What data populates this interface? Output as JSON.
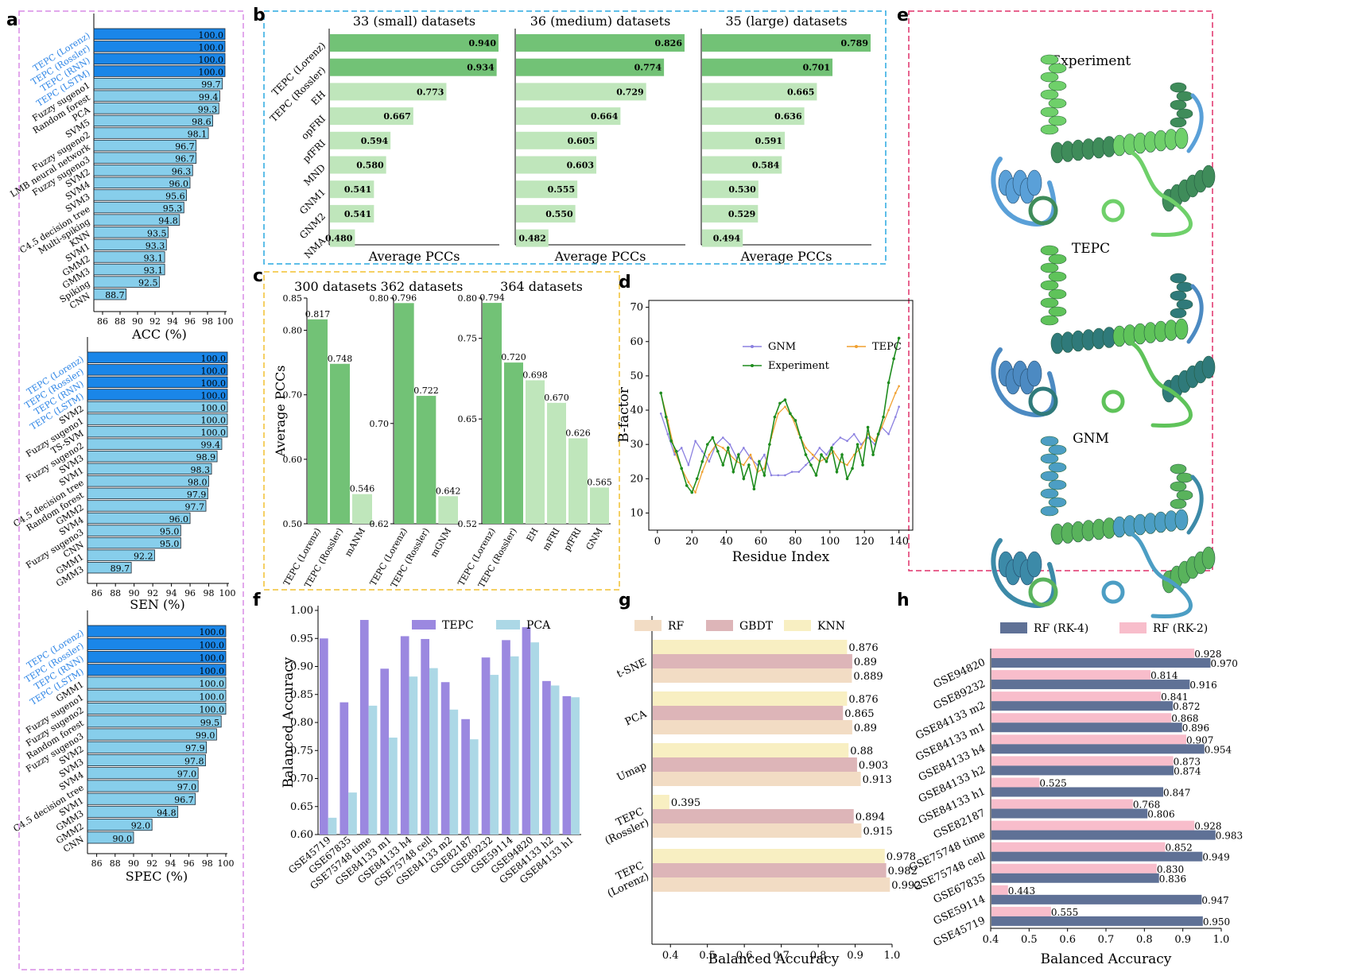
{
  "panel_labels": {
    "a": "a",
    "b": "b",
    "c": "c",
    "d": "d",
    "e": "e",
    "f": "f",
    "g": "g",
    "h": "h"
  },
  "colors": {
    "tepc_bar": "#1a86e8",
    "other_bar": "#87ceeb",
    "tepc_label": "#2f86e6",
    "green_dark": "#72c276",
    "green_light": "#bfe6bb",
    "purple": "#9b88e0",
    "lightblue": "#acd8e6",
    "rf": "#f2dcc4",
    "gbdt": "#ddb5b8",
    "knn": "#f8efc2",
    "rk4": "#5f7196",
    "rk2": "#f8bdcb",
    "gnm_line": "#8b80e0",
    "tepc_line": "#f0a030",
    "exp_line": "#1e8c1e",
    "border_a": "#d98be6",
    "border_b": "#29a8e0",
    "border_c": "#f2c030",
    "border_e": "#e0306a"
  },
  "e_titles": [
    "Experiment",
    "TEPC",
    "GNM"
  ],
  "chart_data": [
    {
      "id": "a1",
      "type": "bar",
      "categories": [
        "TEPC (Lorenz)",
        "TEPC (Rossler)",
        "TEPC (RNN)",
        "TEPC (LSTM)",
        "Fuzzy sugeno1",
        "Random forest",
        "PCA",
        "SVM5",
        "Fuzzy sugeno2",
        "LMB neural network",
        "Fuzzy sugeno3",
        "SVM2",
        "SVM4",
        "SVM3",
        "C4.5 decision tree",
        "Multi-spiking",
        "KNN",
        "SVM1",
        "GMM2",
        "GMM3",
        "Spiking",
        "CNN"
      ],
      "values": [
        100.0,
        100.0,
        100.0,
        100.0,
        99.7,
        99.4,
        99.3,
        98.6,
        98.1,
        96.7,
        96.7,
        96.3,
        96.0,
        95.6,
        95.3,
        94.8,
        93.5,
        93.3,
        93.1,
        93.1,
        92.5,
        88.7
      ],
      "value_labels": [
        "100.0",
        "100.0",
        "100.0",
        "100.0",
        "99.7",
        "99.4",
        "99.3",
        "98.6",
        "98.1",
        "96.7",
        "96.7",
        "96.3",
        "96.0",
        "95.6",
        "95.3",
        "94.8",
        "93.5",
        "93.3",
        "93.1",
        "93.1",
        "92.5",
        "88.7"
      ],
      "xlabel": "ACC (%)",
      "xlim": [
        85,
        100
      ],
      "xticks": [
        "86",
        "88",
        "90",
        "92",
        "94",
        "96",
        "98",
        "100"
      ]
    },
    {
      "id": "a2",
      "type": "bar",
      "categories": [
        "TEPC (Lorenz)",
        "TEPC (Rossler)",
        "TEPC (RNN)",
        "TEPC (LSTM)",
        "SVM2",
        "Fuzzy sugeno1",
        "TS-SVM",
        "Fuzzy sugeno2",
        "SVM3",
        "SVM1",
        "C4.5 decision tree",
        "Random forest",
        "GMM2",
        "SVM4",
        "Fuzzy sugeno3",
        "CNN",
        "GMM1",
        "GMM3"
      ],
      "values": [
        100.0,
        100.0,
        100.0,
        100.0,
        100.0,
        100.0,
        100.0,
        99.4,
        98.9,
        98.3,
        98.0,
        97.9,
        97.7,
        96.0,
        95.0,
        95.0,
        92.2,
        89.7
      ],
      "value_labels": [
        "100.0",
        "100.0",
        "100.0",
        "100.0",
        "100.0",
        "100.0",
        "100.0",
        "99.4",
        "98.9",
        "98.3",
        "98.0",
        "97.9",
        "97.7",
        "96.0",
        "95.0",
        "95.0",
        "92.2",
        "89.7"
      ],
      "xlabel": "SEN (%)",
      "xlim": [
        85,
        100
      ],
      "xticks": [
        "86",
        "88",
        "90",
        "92",
        "94",
        "96",
        "98",
        "100"
      ]
    },
    {
      "id": "a3",
      "type": "bar",
      "categories": [
        "TEPC (Lorenz)",
        "TEPC (Rossler)",
        "TEPC (RNN)",
        "TEPC (LSTM)",
        "GMM1",
        "Fuzzy sugeno1",
        "Fuzzy sugeno2",
        "Random forest",
        "Fuzzy sugeno3",
        "SVM2",
        "SVM3",
        "SVM4",
        "C4.5 decision tree",
        "SVM1",
        "GMM3",
        "GMM2",
        "CNN"
      ],
      "values": [
        100.0,
        100.0,
        100.0,
        100.0,
        100.0,
        100.0,
        100.0,
        99.5,
        99.0,
        97.9,
        97.8,
        97.0,
        97.0,
        96.7,
        94.8,
        92.0,
        90.0
      ],
      "value_labels": [
        "100.0",
        "100.0",
        "100.0",
        "100.0",
        "100.0",
        "100.0",
        "100.0",
        "99.5",
        "99.0",
        "97.9",
        "97.8",
        "97.0",
        "97.0",
        "96.7",
        "94.8",
        "92.0",
        "90.0"
      ],
      "xlabel": "SPEC (%)",
      "xlim": [
        85,
        100
      ],
      "xticks": [
        "86",
        "88",
        "90",
        "92",
        "94",
        "96",
        "98",
        "100"
      ]
    },
    {
      "id": "b",
      "type": "bar",
      "categories": [
        "TEPC (Lorenz)",
        "TEPC (Rossler)",
        "EH",
        "opFRI",
        "pfFRI",
        "MND",
        "GNM1",
        "GNM2",
        "NMA"
      ],
      "panels": [
        {
          "title": "33 (small) datasets",
          "values": [
            0.94,
            0.934,
            0.773,
            0.667,
            0.594,
            0.58,
            0.541,
            0.541,
            0.48
          ],
          "value_labels": [
            "0.940",
            "0.934",
            "0.773",
            "0.667",
            "0.594",
            "0.580",
            "0.541",
            "0.541",
            "0.480"
          ]
        },
        {
          "title": "36 (medium) datasets",
          "values": [
            0.826,
            0.774,
            0.729,
            0.664,
            0.605,
            0.603,
            0.555,
            0.55,
            0.482
          ],
          "value_labels": [
            "0.826",
            "0.774",
            "0.729",
            "0.664",
            "0.605",
            "0.603",
            "0.555",
            "0.550",
            "0.482"
          ]
        },
        {
          "title": "35 (large) datasets",
          "values": [
            0.789,
            0.701,
            0.665,
            0.636,
            0.591,
            0.584,
            0.53,
            0.529,
            0.494
          ],
          "value_labels": [
            "0.789",
            "0.701",
            "0.665",
            "0.636",
            "0.591",
            "0.584",
            "0.530",
            "0.529",
            "0.494"
          ]
        }
      ],
      "xlabel": "Average PCCs"
    },
    {
      "id": "c",
      "type": "bar",
      "ylabel": "Average PCCs",
      "panels": [
        {
          "title": "300 datasets",
          "categories": [
            "TEPC (Lorenz)",
            "TEPC (Rossler)",
            "mANM"
          ],
          "values": [
            0.817,
            0.748,
            0.546
          ],
          "value_labels": [
            "0.817",
            "0.748",
            "0.546"
          ],
          "ylim": [
            0.5,
            0.85
          ],
          "yticks": [
            "0.50",
            "0.60",
            "0.70",
            "0.80",
            "0.85"
          ],
          "ytick_values": [
            0.5,
            0.6,
            0.7,
            0.8,
            0.85
          ]
        },
        {
          "title": "362 datasets",
          "categories": [
            "TEPC (Lorenz)",
            "TEPC (Rossler)",
            "mGNM"
          ],
          "values": [
            0.796,
            0.722,
            0.642
          ],
          "value_labels": [
            "0.796",
            "0.722",
            "0.642"
          ],
          "ylim": [
            0.62,
            0.8
          ],
          "yticks": [
            "0.62",
            "0.70",
            "0.80"
          ],
          "ytick_values": [
            0.62,
            0.7,
            0.8
          ]
        },
        {
          "title": "364 datasets",
          "categories": [
            "TEPC (Lorenz)",
            "TEPC (Rossler)",
            "EH",
            "mFRI",
            "pfFRI",
            "GNM"
          ],
          "values": [
            0.794,
            0.72,
            0.698,
            0.67,
            0.626,
            0.565
          ],
          "value_labels": [
            "0.794",
            "0.720",
            "0.698",
            "0.670",
            "0.626",
            "0.565"
          ],
          "ylim": [
            0.52,
            0.8
          ],
          "yticks": [
            "0.52",
            "0.65",
            "0.75",
            "0.80"
          ],
          "ytick_values": [
            0.52,
            0.65,
            0.75,
            0.8
          ]
        }
      ]
    },
    {
      "id": "d",
      "type": "line",
      "xlabel": "Residue Index",
      "ylabel": "B-factor",
      "xlim": [
        -5,
        148
      ],
      "ylim": [
        5,
        72
      ],
      "xticks": [
        0,
        20,
        40,
        60,
        80,
        100,
        120,
        140
      ],
      "yticks": [
        10,
        20,
        30,
        40,
        50,
        60,
        70
      ],
      "series": [
        {
          "name": "GNM",
          "x": [
            2,
            6,
            10,
            14,
            18,
            22,
            26,
            30,
            34,
            38,
            42,
            46,
            50,
            54,
            58,
            62,
            66,
            70,
            74,
            78,
            82,
            86,
            90,
            94,
            98,
            102,
            106,
            110,
            114,
            118,
            122,
            126,
            130,
            134,
            138,
            140
          ],
          "y": [
            39,
            33,
            27,
            29,
            24,
            31,
            28,
            25,
            30,
            32,
            30,
            26,
            29,
            26,
            24,
            27,
            21,
            21,
            21,
            22,
            22,
            24,
            26,
            29,
            27,
            30,
            32,
            31,
            33,
            30,
            32,
            30,
            35,
            33,
            38,
            41
          ]
        },
        {
          "name": "TEPC",
          "x": [
            2,
            6,
            10,
            14,
            18,
            22,
            26,
            30,
            34,
            38,
            42,
            46,
            50,
            54,
            58,
            62,
            66,
            70,
            74,
            78,
            82,
            86,
            90,
            94,
            98,
            102,
            106,
            110,
            114,
            118,
            122,
            126,
            130,
            134,
            138,
            140
          ],
          "y": [
            45,
            37,
            28,
            23,
            19,
            16,
            22,
            27,
            30,
            29,
            27,
            25,
            24,
            27,
            22,
            23,
            32,
            39,
            41,
            38,
            33,
            29,
            27,
            25,
            26,
            28,
            25,
            24,
            27,
            29,
            33,
            31,
            35,
            40,
            45,
            47
          ]
        },
        {
          "name": "Experiment",
          "x": [
            2,
            5,
            8,
            11,
            14,
            17,
            20,
            23,
            26,
            29,
            32,
            35,
            38,
            41,
            44,
            47,
            50,
            53,
            56,
            59,
            62,
            65,
            68,
            71,
            74,
            77,
            80,
            83,
            86,
            89,
            92,
            95,
            98,
            101,
            104,
            107,
            110,
            113,
            116,
            119,
            122,
            125,
            128,
            131,
            134,
            137,
            140
          ],
          "y": [
            45,
            38,
            31,
            28,
            23,
            18,
            16,
            20,
            25,
            30,
            32,
            28,
            24,
            29,
            22,
            27,
            20,
            24,
            17,
            25,
            21,
            30,
            38,
            42,
            43,
            39,
            37,
            32,
            27,
            24,
            21,
            27,
            25,
            29,
            22,
            27,
            20,
            23,
            30,
            24,
            35,
            27,
            33,
            38,
            48,
            55,
            61
          ]
        }
      ]
    },
    {
      "id": "f",
      "type": "bar",
      "categories": [
        "GSE45719",
        "GSE67835",
        "GSE75748 time",
        "GSE84133 m1",
        "GSE84133 h4",
        "GSE75748 cell",
        "GSE84133 m2",
        "GSE82187",
        "GSE89232",
        "GSE59114",
        "GSE94820",
        "GSE84133 h2",
        "GSE84133 h1"
      ],
      "series": [
        {
          "name": "TEPC",
          "values": [
            0.95,
            0.836,
            0.983,
            0.896,
            0.954,
            0.949,
            0.872,
            0.806,
            0.916,
            0.947,
            0.97,
            0.874,
            0.847
          ]
        },
        {
          "name": "PCA",
          "values": [
            0.63,
            0.675,
            0.83,
            0.773,
            0.882,
            0.897,
            0.823,
            0.77,
            0.885,
            0.918,
            0.943,
            0.866,
            0.845
          ]
        }
      ],
      "ylabel": "Balanced Accuracy",
      "ylim": [
        0.6,
        1.0
      ],
      "yticks": [
        "0.60",
        "0.65",
        "0.70",
        "0.75",
        "0.80",
        "0.85",
        "0.90",
        "0.95",
        "1.00"
      ],
      "ytick_values": [
        0.6,
        0.65,
        0.7,
        0.75,
        0.8,
        0.85,
        0.9,
        0.95,
        1.0
      ]
    },
    {
      "id": "g",
      "type": "bar",
      "categories": [
        "t-SNE",
        "PCA",
        "Umap",
        "TEPC (Rossler)",
        "TEPC (Lorenz)"
      ],
      "series": [
        {
          "name": "RF",
          "values": [
            0.889,
            0.89,
            0.913,
            0.915,
            0.992
          ],
          "value_labels": [
            "0.889",
            "0.89",
            "0.913",
            "0.915",
            "0.992"
          ]
        },
        {
          "name": "GBDT",
          "values": [
            0.89,
            0.865,
            0.903,
            0.894,
            0.982
          ],
          "value_labels": [
            "0.89",
            "0.865",
            "0.903",
            "0.894",
            "0.982"
          ]
        },
        {
          "name": "KNN",
          "values": [
            0.876,
            0.876,
            0.88,
            0.395,
            0.978
          ],
          "value_labels": [
            "0.876",
            "0.876",
            "0.88",
            "0.395",
            "0.978"
          ]
        }
      ],
      "xlabel": "Balanced Accuracy",
      "xlim": [
        0.35,
        1.0
      ],
      "xticks": [
        "0.4",
        "0.5",
        "0.6",
        "0.7",
        "0.8",
        "0.9",
        "1.0"
      ],
      "xtick_values": [
        0.4,
        0.5,
        0.6,
        0.7,
        0.8,
        0.9,
        1.0
      ]
    },
    {
      "id": "h",
      "type": "bar",
      "categories": [
        "GSE94820",
        "GSE89232",
        "GSE84133 m2",
        "GSE84133 m1",
        "GSE84133 h4",
        "GSE84133 h2",
        "GSE84133 h1",
        "GSE82187",
        "GSE75748 time",
        "GSE75748 cell",
        "GSE67835",
        "GSE59114",
        "GSE45719"
      ],
      "series": [
        {
          "name": "RF (RK-4)",
          "values": [
            0.97,
            0.916,
            0.872,
            0.896,
            0.954,
            0.874,
            0.847,
            0.806,
            0.983,
            0.949,
            0.836,
            0.947,
            0.95
          ],
          "value_labels": [
            "0.970",
            "0.916",
            "0.872",
            "0.896",
            "0.954",
            "0.874",
            "0.847",
            "0.806",
            "0.983",
            "0.949",
            "0.836",
            "0.947",
            "0.950"
          ]
        },
        {
          "name": "RF (RK-2)",
          "values": [
            0.928,
            0.814,
            0.841,
            0.868,
            0.907,
            0.873,
            0.525,
            0.768,
            0.928,
            0.852,
            0.83,
            0.443,
            0.555
          ],
          "value_labels": [
            "0.928",
            "0.814",
            "0.841",
            "0.868",
            "0.907",
            "0.873",
            "0.525",
            "0.768",
            "0.928",
            "0.852",
            "0.830",
            "0.443",
            "0.555"
          ]
        }
      ],
      "xlabel": "Balanced Accuracy",
      "xlim": [
        0.4,
        1.0
      ],
      "xticks": [
        "0.4",
        "0.5",
        "0.6",
        "0.7",
        "0.8",
        "0.9",
        "1.0"
      ],
      "xtick_values": [
        0.4,
        0.5,
        0.6,
        0.7,
        0.8,
        0.9,
        1.0
      ]
    }
  ]
}
